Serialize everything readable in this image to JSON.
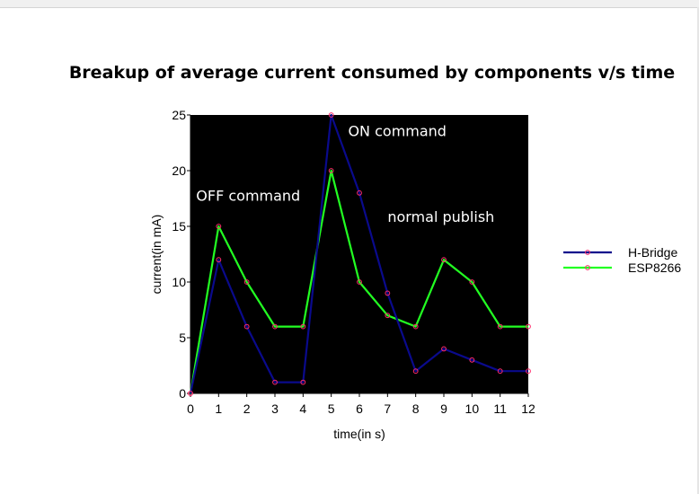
{
  "chart_data": {
    "type": "line",
    "title": "Breakup of average current consumed by components v/s time",
    "xlabel": "time(in s)",
    "ylabel": "current(in mA)",
    "x": [
      0,
      1,
      2,
      3,
      4,
      5,
      6,
      7,
      8,
      9,
      10,
      11,
      12
    ],
    "xlim": [
      0,
      12
    ],
    "ylim": [
      0,
      25
    ],
    "x_ticks": [
      0,
      1,
      2,
      3,
      4,
      5,
      6,
      7,
      8,
      9,
      10,
      11,
      12
    ],
    "y_ticks": [
      0,
      5,
      10,
      15,
      20,
      25
    ],
    "plot_background": "#000000",
    "grid": false,
    "legend_position": "right",
    "series": [
      {
        "name": "H-Bridge",
        "color": "#0a0a8c",
        "marker_color": "#ff2a6a",
        "values": [
          0,
          12,
          6,
          1,
          1,
          25,
          18,
          9,
          2,
          4,
          3,
          2,
          2
        ]
      },
      {
        "name": "ESP8266",
        "color": "#22ff22",
        "marker_color": "#ff2a6a",
        "values": [
          0,
          15,
          10,
          6,
          6,
          20,
          10,
          7,
          6,
          12,
          10,
          6,
          6
        ]
      }
    ],
    "annotations": [
      {
        "text": "OFF command",
        "x": 0.2,
        "y": 17.3
      },
      {
        "text": "ON command",
        "x": 5.6,
        "y": 23.1
      },
      {
        "text": "normal publish",
        "x": 7.0,
        "y": 15.4
      }
    ]
  }
}
